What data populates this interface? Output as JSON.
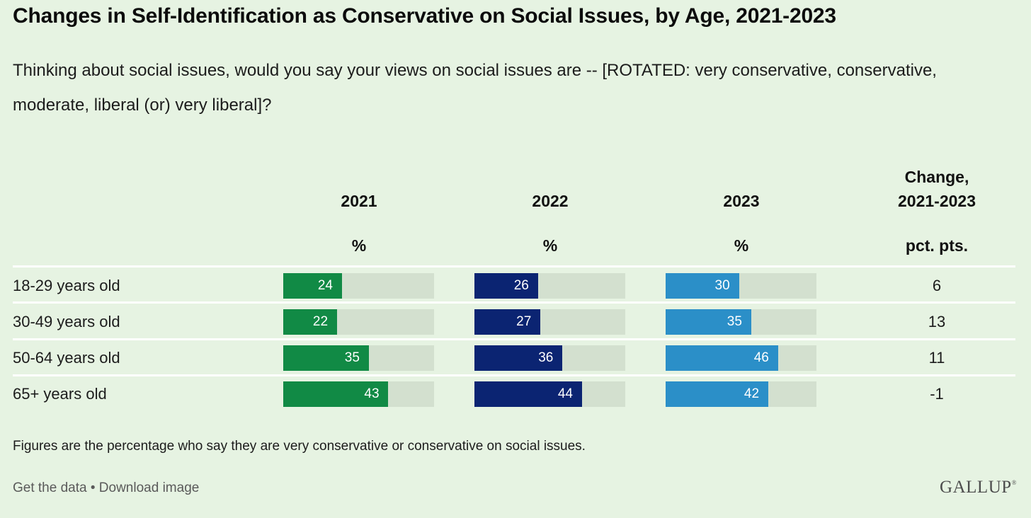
{
  "title": "Changes in Self-Identification as Conservative on Social Issues, by Age, 2021-2023",
  "subtitle": "Thinking about social issues, would you say your views on social issues are -- [ROTATED: very conservative, conservative, moderate, liberal (or) very liberal]?",
  "columns": {
    "c2021": {
      "year": "2021",
      "unit": "%"
    },
    "c2022": {
      "year": "2022",
      "unit": "%"
    },
    "c2023": {
      "year": "2023",
      "unit": "%"
    },
    "change": {
      "line1": "Change,",
      "line2": "2021-2023",
      "unit": "pct. pts."
    }
  },
  "colors": {
    "2021": "#118a45",
    "2022": "#0b2472",
    "2023": "#2b8fc8",
    "track": "#d3e0cf",
    "background": "#e6f3e2"
  },
  "chart_data": {
    "type": "bar",
    "categories": [
      "18-29 years old",
      "30-49 years old",
      "50-64 years old",
      "65+ years old"
    ],
    "series": [
      {
        "name": "2021",
        "values": [
          24,
          22,
          35,
          43
        ]
      },
      {
        "name": "2022",
        "values": [
          26,
          27,
          36,
          44
        ]
      },
      {
        "name": "2023",
        "values": [
          30,
          35,
          46,
          42
        ]
      }
    ],
    "change": {
      "name": "Change, 2021-2023",
      "values": [
        "6",
        "13",
        "11",
        "-1"
      ]
    },
    "ylim": [
      0,
      100
    ]
  },
  "footer": {
    "note": "Figures are the percentage who say they are very conservative or conservative on social issues.",
    "get_data": "Get the data",
    "separator": "•",
    "download": "Download image",
    "logo": "GALLUP"
  }
}
